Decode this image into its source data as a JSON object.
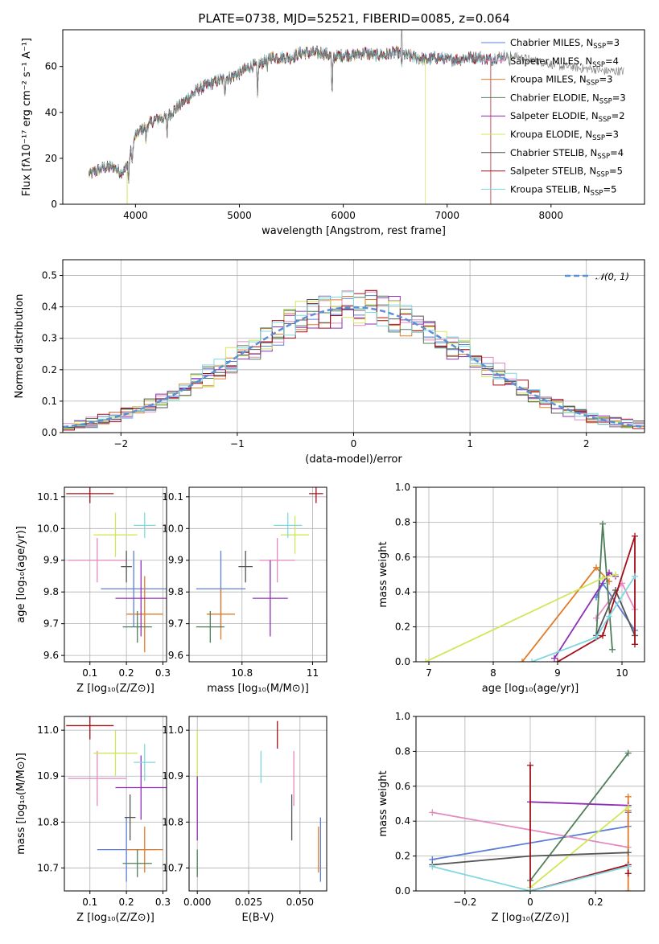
{
  "figure": {
    "title": "PLATE=0738, MJD=52521, FIBERID=0085, z=0.064"
  },
  "colors": {
    "Chabrier MILES": "#5b7fd6",
    "Salpeter MILES": "#e58ac0",
    "Kroupa MILES": "#e07b26",
    "Chabrier ELODIE": "#4f7f5a",
    "Salpeter ELODIE": "#8e2fb5",
    "Kroupa ELODIE": "#cfe85a",
    "Chabrier STELIB": "#555555",
    "Salpeter STELIB": "#a3101a",
    "Kroupa STELIB": "#7fd8e0",
    "normal": "#5b8fd6"
  },
  "chart_data": [
    {
      "id": "spectrum",
      "type": "line",
      "title": "PLATE=0738, MJD=52521, FIBERID=0085, z=0.064",
      "xlabel": "wavelength [Angstrom, rest frame]",
      "ylabel": "Flux [fλ10⁻¹⁷ erg cm⁻² s⁻¹ A⁻¹]",
      "xlim": [
        3300,
        8900
      ],
      "ylim": [
        0,
        76
      ],
      "xticks": [
        4000,
        5000,
        6000,
        7000,
        8000
      ],
      "yticks": [
        0,
        20,
        40,
        60
      ],
      "grid": false,
      "legend_position": "top-right",
      "legend": [
        {
          "name": "Chabrier MILES, N",
          "sub": "SSP",
          "eq": "=3"
        },
        {
          "name": "Salpeter MILES, N",
          "sub": "SSP",
          "eq": "=4"
        },
        {
          "name": "Kroupa MILES, N",
          "sub": "SSP",
          "eq": "=3"
        },
        {
          "name": "Chabrier ELODIE, N",
          "sub": "SSP",
          "eq": "=3"
        },
        {
          "name": "Salpeter ELODIE, N",
          "sub": "SSP",
          "eq": "=2"
        },
        {
          "name": "Kroupa ELODIE, N",
          "sub": "SSP",
          "eq": "=3"
        },
        {
          "name": "Chabrier STELIB, N",
          "sub": "SSP",
          "eq": "=4"
        },
        {
          "name": "Salpeter STELIB, N",
          "sub": "SSP",
          "eq": "=5"
        },
        {
          "name": "Kroupa STELIB, N",
          "sub": "SSP",
          "eq": "=5"
        }
      ],
      "continuum": {
        "x": [
          3550,
          3700,
          3800,
          3850,
          3900,
          3950,
          4000,
          4100,
          4200,
          4300,
          4400,
          4500,
          4600,
          4700,
          4800,
          4900,
          5000,
          5100,
          5200,
          5300,
          5400,
          5500,
          5600,
          5700,
          5800,
          5900,
          6000,
          6100,
          6200,
          6300,
          6400,
          6500,
          6600,
          6700,
          6800,
          6900,
          7000,
          7100,
          7200,
          7300,
          7400,
          7500,
          7600,
          7700,
          7800,
          7900,
          8000,
          8100,
          8200,
          8300,
          8400,
          8500,
          8700
        ],
        "y": [
          13,
          16,
          16,
          14,
          15,
          22,
          30,
          34,
          37,
          38,
          42,
          46,
          50,
          52,
          54,
          55,
          57,
          60,
          61,
          64,
          64,
          64,
          66,
          66,
          66,
          64,
          65,
          65,
          66,
          65,
          65,
          66,
          65,
          64,
          63,
          64,
          63,
          63,
          64,
          64,
          63,
          64,
          65,
          64,
          63,
          62,
          61,
          60,
          60,
          59,
          59,
          58,
          58
        ]
      },
      "absorption_features": [
        {
          "x": 3934,
          "depth": 10
        },
        {
          "x": 3969,
          "depth": 8
        },
        {
          "x": 4102,
          "depth": 6
        },
        {
          "x": 4304,
          "depth": 8
        },
        {
          "x": 4861,
          "depth": 6
        },
        {
          "x": 5175,
          "depth": 14
        },
        {
          "x": 5270,
          "depth": 5
        },
        {
          "x": 5893,
          "depth": 18
        },
        {
          "x": 6563,
          "depth": 4
        },
        {
          "x": 7600,
          "depth": 6
        }
      ]
    },
    {
      "id": "residuals",
      "type": "bar",
      "xlabel": "(data-model)/error",
      "ylabel": "Normed distribution",
      "xlim": [
        -2.5,
        2.5
      ],
      "ylim": [
        0,
        0.55
      ],
      "xticks": [
        -2,
        -1,
        0,
        1,
        2
      ],
      "yticks": [
        0.0,
        0.1,
        0.2,
        0.3,
        0.4,
        0.5
      ],
      "grid": true,
      "legend_position": "top-right",
      "legend": [
        {
          "name": "N(0,1)"
        }
      ],
      "bin_width": 0.1,
      "bin_start": -2.5,
      "reference_curve": {
        "type": "gaussian",
        "mean": 0,
        "sigma": 1
      }
    },
    {
      "id": "age-vs-Z",
      "type": "scatter",
      "xlabel": "Z [log₁₀(Z/Z⊙)]",
      "ylabel": "age  [log₁₀(age/yr)]",
      "xlim": [
        0.03,
        0.31
      ],
      "ylim": [
        9.58,
        10.13
      ],
      "xticks": [
        0.1,
        0.2,
        0.3
      ],
      "yticks": [
        9.6,
        9.7,
        9.8,
        9.9,
        10.0,
        10.1
      ],
      "grid": true,
      "series": [
        {
          "name": "Chabrier MILES",
          "x": 0.22,
          "y": 9.81,
          "xerr": 0.09,
          "yerr": 0.12
        },
        {
          "name": "Salpeter MILES",
          "x": 0.12,
          "y": 9.9,
          "xerr": 0.08,
          "yerr": 0.07
        },
        {
          "name": "Kroupa MILES",
          "x": 0.25,
          "y": 9.73,
          "xerr": 0.05,
          "yerr": 0.12
        },
        {
          "name": "Chabrier ELODIE",
          "x": 0.23,
          "y": 9.69,
          "xerr": 0.04,
          "yerr": 0.05
        },
        {
          "name": "Salpeter ELODIE",
          "x": 0.24,
          "y": 9.78,
          "xerr": 0.07,
          "yerr": 0.12
        },
        {
          "name": "Kroupa ELODIE",
          "x": 0.17,
          "y": 9.98,
          "xerr": 0.06,
          "yerr": 0.07
        },
        {
          "name": "Chabrier STELIB",
          "x": 0.2,
          "y": 9.88,
          "xerr": 0.015,
          "yerr": 0.05
        },
        {
          "name": "Salpeter STELIB",
          "x": 0.1,
          "y": 10.11,
          "xerr": 0.065,
          "yerr": 0.03
        },
        {
          "name": "Kroupa STELIB",
          "x": 0.25,
          "y": 10.01,
          "xerr": 0.03,
          "yerr": 0.04
        }
      ]
    },
    {
      "id": "age-vs-mass",
      "type": "scatter",
      "xlabel": "mass [log₁₀(M/M⊙)]",
      "ylabel": "",
      "xlim": [
        10.65,
        11.04
      ],
      "ylim": [
        9.58,
        10.13
      ],
      "xticks": [
        10.8,
        11.0
      ],
      "yticks": [
        9.6,
        9.7,
        9.8,
        9.9,
        10.0,
        10.1
      ],
      "grid": true,
      "series": [
        {
          "name": "Chabrier MILES",
          "x": 10.74,
          "y": 9.81,
          "xerr": 0.07,
          "yerr": 0.12
        },
        {
          "name": "Salpeter MILES",
          "x": 10.9,
          "y": 9.9,
          "xerr": 0.05,
          "yerr": 0.07
        },
        {
          "name": "Kroupa MILES",
          "x": 10.74,
          "y": 9.73,
          "xerr": 0.04,
          "yerr": 0.08
        },
        {
          "name": "Chabrier ELODIE",
          "x": 10.71,
          "y": 9.69,
          "xerr": 0.04,
          "yerr": 0.05
        },
        {
          "name": "Salpeter ELODIE",
          "x": 10.88,
          "y": 9.78,
          "xerr": 0.05,
          "yerr": 0.12
        },
        {
          "name": "Kroupa ELODIE",
          "x": 10.95,
          "y": 9.98,
          "xerr": 0.04,
          "yerr": 0.06
        },
        {
          "name": "Chabrier STELIB",
          "x": 10.81,
          "y": 9.88,
          "xerr": 0.02,
          "yerr": 0.05
        },
        {
          "name": "Salpeter STELIB",
          "x": 11.01,
          "y": 10.11,
          "xerr": 0.02,
          "yerr": 0.03
        },
        {
          "name": "Kroupa STELIB",
          "x": 10.93,
          "y": 10.01,
          "xerr": 0.04,
          "yerr": 0.04
        }
      ]
    },
    {
      "id": "weight-vs-age",
      "type": "line",
      "xlabel": "age  [log₁₀(age/yr)]",
      "ylabel": "mass weight",
      "xlim": [
        6.8,
        10.35
      ],
      "ylim": [
        0,
        1
      ],
      "xticks": [
        7,
        8,
        9,
        10
      ],
      "yticks": [
        0.0,
        0.2,
        0.4,
        0.6,
        0.8,
        1.0
      ],
      "grid": true,
      "series": [
        {
          "name": "Chabrier MILES",
          "x": [
            9.6,
            9.7,
            10.2
          ],
          "y": [
            0.37,
            0.45,
            0.18
          ]
        },
        {
          "name": "Salpeter MILES",
          "x": [
            9.6,
            10.0,
            10.2
          ],
          "y": [
            0.25,
            0.45,
            0.3
          ]
        },
        {
          "name": "Kroupa MILES",
          "x": [
            8.45,
            9.6,
            9.8
          ],
          "y": [
            0.0,
            0.54,
            0.46
          ]
        },
        {
          "name": "Chabrier ELODIE",
          "x": [
            9.6,
            9.7,
            9.85
          ],
          "y": [
            0.14,
            0.79,
            0.07
          ]
        },
        {
          "name": "Salpeter ELODIE",
          "x": [
            8.95,
            9.8,
            9.9
          ],
          "y": [
            0.02,
            0.51,
            0.49
          ]
        },
        {
          "name": "Kroupa ELODIE",
          "x": [
            6.95,
            9.7,
            9.9
          ],
          "y": [
            0.0,
            0.48,
            0.5
          ]
        },
        {
          "name": "Chabrier STELIB",
          "x": [
            9.6,
            9.9,
            10.2
          ],
          "y": [
            0.15,
            0.41,
            0.15
          ]
        },
        {
          "name": "Salpeter STELIB",
          "x": [
            9.0,
            9.7,
            10.2,
            10.2
          ],
          "y": [
            0.0,
            0.15,
            0.72,
            0.1
          ]
        },
        {
          "name": "Kroupa STELIB",
          "x": [
            8.6,
            9.6,
            9.8,
            10.2
          ],
          "y": [
            0.0,
            0.14,
            0.26,
            0.49
          ]
        }
      ]
    },
    {
      "id": "mass-vs-Z",
      "type": "scatter",
      "xlabel": "Z [log₁₀(Z/Z⊙)]",
      "ylabel": "mass [log₁₀(M/M⊙)]",
      "xlim": [
        0.03,
        0.31
      ],
      "ylim": [
        10.65,
        11.03
      ],
      "xticks": [
        0.1,
        0.2,
        0.3
      ],
      "yticks": [
        10.7,
        10.8,
        10.9,
        11.0
      ],
      "grid": true,
      "series": [
        {
          "name": "Chabrier MILES",
          "x": 0.2,
          "y": 10.74,
          "xerr": 0.08,
          "yerr": 0.07
        },
        {
          "name": "Salpeter MILES",
          "x": 0.12,
          "y": 10.895,
          "xerr": 0.08,
          "yerr": 0.06
        },
        {
          "name": "Kroupa MILES",
          "x": 0.25,
          "y": 10.74,
          "xerr": 0.05,
          "yerr": 0.05
        },
        {
          "name": "Chabrier ELODIE",
          "x": 0.23,
          "y": 10.71,
          "xerr": 0.04,
          "yerr": 0.03
        },
        {
          "name": "Salpeter ELODIE",
          "x": 0.24,
          "y": 10.875,
          "xerr": 0.07,
          "yerr": 0.07
        },
        {
          "name": "Kroupa ELODIE",
          "x": 0.17,
          "y": 10.95,
          "xerr": 0.06,
          "yerr": 0.05
        },
        {
          "name": "Chabrier STELIB",
          "x": 0.21,
          "y": 10.81,
          "xerr": 0.015,
          "yerr": 0.05
        },
        {
          "name": "Salpeter STELIB",
          "x": 0.1,
          "y": 11.01,
          "xerr": 0.065,
          "yerr": 0.03
        },
        {
          "name": "Kroupa STELIB",
          "x": 0.25,
          "y": 10.93,
          "xerr": 0.03,
          "yerr": 0.04
        }
      ]
    },
    {
      "id": "mass-vs-EBV",
      "type": "scatter",
      "xlabel": "E(B-V)",
      "ylabel": "",
      "xlim": [
        -0.004,
        0.063
      ],
      "ylim": [
        10.65,
        11.03
      ],
      "xticks": [
        0.0,
        0.025,
        0.05
      ],
      "xticklabels": [
        "0.000",
        "0.025",
        "0.050"
      ],
      "yticks": [
        10.7,
        10.8,
        10.9,
        11.0
      ],
      "grid": true,
      "series": [
        {
          "name": "Chabrier MILES",
          "x": 0.06,
          "y": 10.74,
          "xerr": 0,
          "yerr": 0.07
        },
        {
          "name": "Salpeter MILES",
          "x": 0.047,
          "y": 10.895,
          "xerr": 0,
          "yerr": 0.06
        },
        {
          "name": "Kroupa MILES",
          "x": 0.059,
          "y": 10.74,
          "xerr": 0,
          "yerr": 0.05
        },
        {
          "name": "Chabrier ELODIE",
          "x": 0.0,
          "y": 10.71,
          "xerr": 0,
          "yerr": 0.03
        },
        {
          "name": "Salpeter ELODIE",
          "x": 0.0,
          "y": 10.83,
          "xerr": 0,
          "yerr": 0.07
        },
        {
          "name": "Kroupa ELODIE",
          "x": 0.0,
          "y": 10.95,
          "xerr": 0,
          "yerr": 0.05
        },
        {
          "name": "Chabrier STELIB",
          "x": 0.046,
          "y": 10.81,
          "xerr": 0,
          "yerr": 0.05
        },
        {
          "name": "Salpeter STELIB",
          "x": 0.039,
          "y": 10.99,
          "xerr": 0,
          "yerr": 0.03
        },
        {
          "name": "Kroupa STELIB",
          "x": 0.031,
          "y": 10.92,
          "xerr": 0,
          "yerr": 0.035
        }
      ]
    },
    {
      "id": "weight-vs-Z",
      "type": "line",
      "xlabel": "Z [log₁₀(Z/Z⊙)]",
      "ylabel": "mass weight",
      "xlim": [
        -0.35,
        0.35
      ],
      "ylim": [
        0,
        1
      ],
      "xticks": [
        -0.2,
        0.0,
        0.2
      ],
      "yticks": [
        0.0,
        0.2,
        0.4,
        0.6,
        0.8,
        1.0
      ],
      "grid": true,
      "series": [
        {
          "name": "Chabrier MILES",
          "x": [
            -0.3,
            0.3,
            0.3
          ],
          "y": [
            0.18,
            0.37,
            0.45
          ]
        },
        {
          "name": "Salpeter MILES",
          "x": [
            -0.3,
            0.3
          ],
          "y": [
            0.45,
            0.25
          ]
        },
        {
          "name": "Kroupa MILES",
          "x": [
            0.3,
            0.3,
            0.3
          ],
          "y": [
            0.54,
            0.46,
            0.0
          ]
        },
        {
          "name": "Chabrier ELODIE",
          "x": [
            0.0,
            0.3
          ],
          "y": [
            0.06,
            0.79
          ]
        },
        {
          "name": "Salpeter ELODIE",
          "x": [
            0.0,
            0.3
          ],
          "y": [
            0.51,
            0.49
          ]
        },
        {
          "name": "Kroupa ELODIE",
          "x": [
            0.0,
            0.0,
            0.3
          ],
          "y": [
            0.0,
            0.02,
            0.48
          ]
        },
        {
          "name": "Chabrier STELIB",
          "x": [
            -0.3,
            0.0,
            0.3
          ],
          "y": [
            0.15,
            0.2,
            0.22
          ]
        },
        {
          "name": "Salpeter STELIB",
          "x": [
            0.0,
            0.0,
            0.3,
            0.3
          ],
          "y": [
            0.72,
            0.0,
            0.15,
            0.1
          ]
        },
        {
          "name": "Kroupa STELIB",
          "x": [
            -0.3,
            0.0,
            0.3
          ],
          "y": [
            0.14,
            0.0,
            0.14
          ]
        }
      ]
    }
  ]
}
